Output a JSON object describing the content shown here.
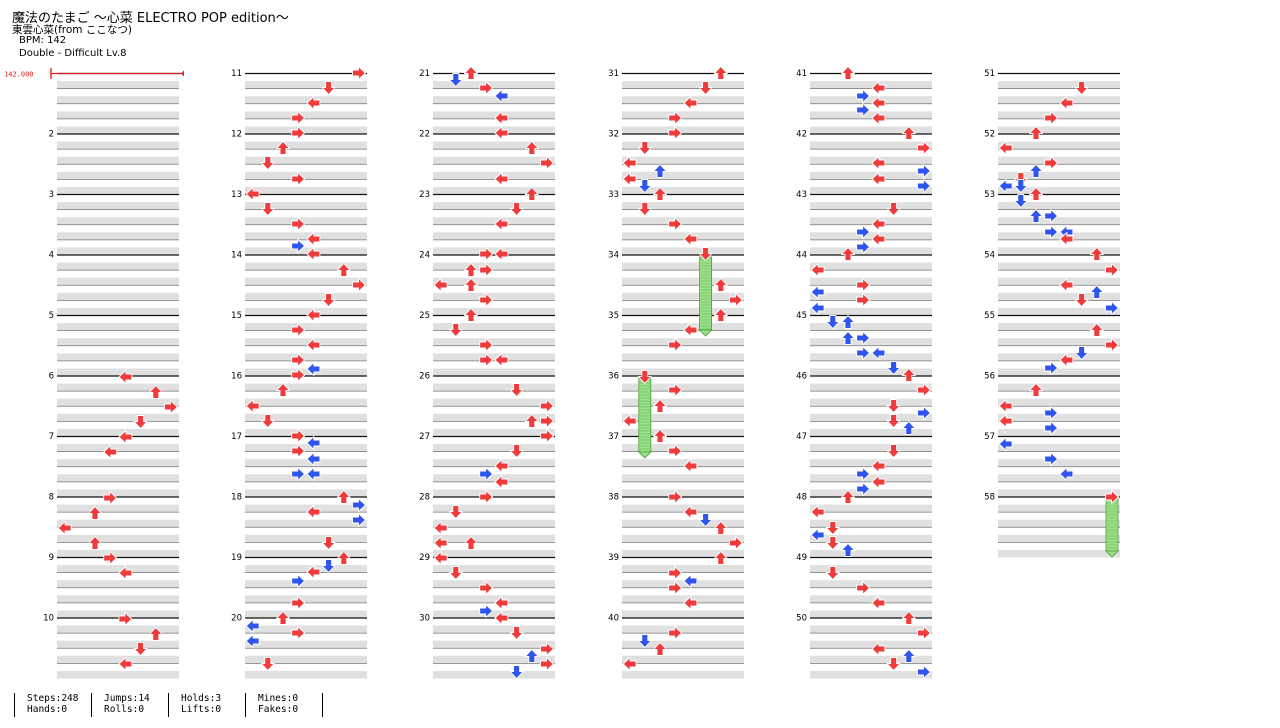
{
  "header": {
    "title": "魔法のたまご ～心菜 ELECTRO POP edition～",
    "artist": "東雲心菜(from ここなつ)",
    "bpm_text": "BPM: 142",
    "difficulty_text": "Double - Difficult Lv.8"
  },
  "chart_data": {
    "type": "step-chart",
    "bpm_marker": "142.000",
    "measure_labels": [
      "2",
      "3",
      "4",
      "5",
      "6",
      "7",
      "8",
      "9",
      "10",
      "11",
      "12",
      "13",
      "14",
      "15",
      "16",
      "17",
      "18",
      "19",
      "20",
      "21",
      "22",
      "23",
      "24",
      "25",
      "26",
      "27",
      "28",
      "29",
      "30",
      "31",
      "32",
      "33",
      "34",
      "35",
      "36",
      "37",
      "38",
      "39",
      "40",
      "41",
      "42",
      "43",
      "44",
      "45",
      "46",
      "47",
      "48",
      "49",
      "50",
      "51",
      "52",
      "53",
      "54",
      "55",
      "56",
      "57",
      "58"
    ],
    "colors": {
      "red_arrow": "#ef3b3b",
      "blue_arrow": "#2f55ee",
      "hold": "#9be08a",
      "band": "#e0e0e0",
      "bpm": "#e02020"
    }
  },
  "stats": [
    {
      "line1": "Steps:248",
      "line2": "Hands:0"
    },
    {
      "line1": "Jumps:14",
      "line2": "Rolls:0"
    },
    {
      "line1": "Holds:3",
      "line2": "Lifts:0"
    },
    {
      "line1": "Mines:0",
      "line2": "Fakes:0"
    }
  ]
}
